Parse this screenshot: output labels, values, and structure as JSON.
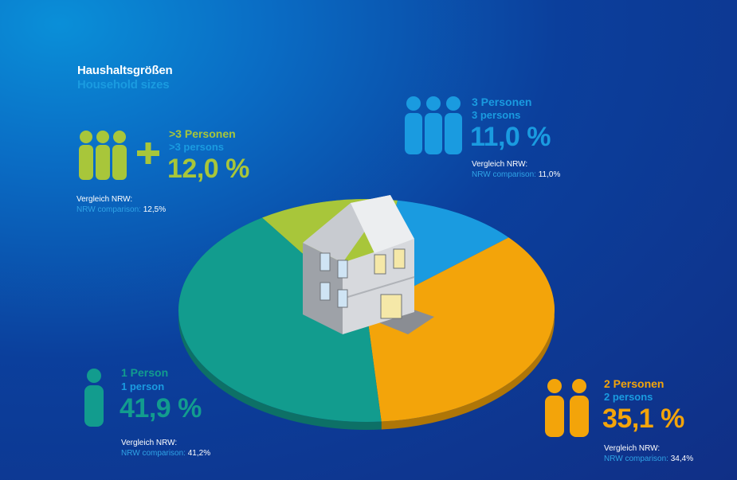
{
  "colors": {
    "green": "#a8c63a",
    "blue": "#1a9be0",
    "orange": "#f3a40a",
    "teal": "#129c8e",
    "white": "#ffffff"
  },
  "header": {
    "title_de": "Haushaltsgrößen",
    "title_en": "Household sizes"
  },
  "segments": [
    {
      "key": "p3plus",
      "label_de": ">3 Personen",
      "label_en": ">3 persons",
      "value_label": "12,0 %",
      "cmp_de": "Vergleich NRW:",
      "cmp_en": "NRW comparison:",
      "cmp_value": "12,5%",
      "color": "#a8c63a",
      "icon": "three-people-plus-icon"
    },
    {
      "key": "p3",
      "label_de": "3 Personen",
      "label_en": "3 persons",
      "value_label": "11,0 %",
      "cmp_de": "Vergleich NRW:",
      "cmp_en": "NRW comparison:",
      "cmp_value": "11,0%",
      "color": "#1a9be0",
      "icon": "three-people-icon"
    },
    {
      "key": "p2",
      "label_de": "2 Personen",
      "label_en": "2 persons",
      "value_label": "35,1 %",
      "cmp_de": "Vergleich NRW:",
      "cmp_en": "NRW comparison:",
      "cmp_value": "34,4%",
      "color": "#f3a40a",
      "icon": "two-people-icon"
    },
    {
      "key": "p1",
      "label_de": "1 Person",
      "label_en": "1 person",
      "value_label": "41,9 %",
      "cmp_de": "Vergleich NRW:",
      "cmp_en": "NRW comparison:",
      "cmp_value": "41,2%",
      "color": "#129c8e",
      "icon": "one-person-icon"
    }
  ],
  "chart_data": {
    "type": "pie",
    "title": "Haushaltsgrößen / Household sizes",
    "categories": [
      ">3 Personen",
      "3 Personen",
      "2 Personen",
      "1 Person"
    ],
    "values": [
      12.0,
      11.0,
      35.1,
      41.9
    ],
    "unit": "%",
    "comparison_nrw": [
      12.5,
      11.0,
      34.4,
      41.2
    ],
    "colors": [
      "#a8c63a",
      "#1a9be0",
      "#f3a40a",
      "#129c8e"
    ],
    "legend": "none"
  }
}
